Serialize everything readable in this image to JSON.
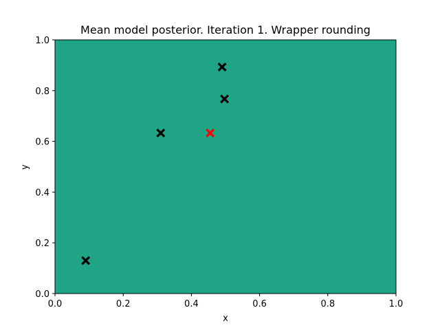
{
  "chart_data": {
    "type": "scatter",
    "title": "Mean model posterior. Iteration 1. Wrapper rounding",
    "xlabel": "x",
    "ylabel": "y",
    "xlim": [
      0.0,
      1.0
    ],
    "ylim": [
      0.0,
      1.0
    ],
    "xticks": [
      "0.0",
      "0.2",
      "0.4",
      "0.6",
      "0.8",
      "1.0"
    ],
    "yticks": [
      "0.0",
      "0.2",
      "0.4",
      "0.6",
      "0.8",
      "1.0"
    ],
    "background_color": "#20a486",
    "grid": false,
    "series": [
      {
        "color": "#000000",
        "marker": "X",
        "points": [
          {
            "x": 0.09,
            "y": 0.13
          },
          {
            "x": 0.31,
            "y": 0.633
          },
          {
            "x": 0.49,
            "y": 0.893
          },
          {
            "x": 0.497,
            "y": 0.767
          }
        ]
      },
      {
        "color": "#ff0000",
        "marker": "X",
        "points": [
          {
            "x": 0.455,
            "y": 0.633
          }
        ]
      }
    ]
  }
}
